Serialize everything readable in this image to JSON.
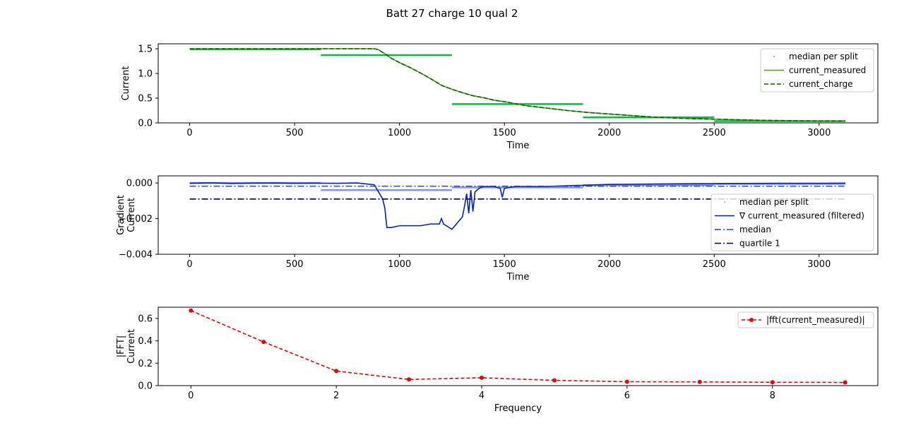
{
  "figure": {
    "title": "Batt 27 charge 10 qual 2"
  },
  "chart_data": [
    {
      "type": "line",
      "xlabel": "Time",
      "ylabel": "Current",
      "xlim": [
        -150,
        3280
      ],
      "ylim": [
        0,
        1.6
      ],
      "xticks": [
        0,
        500,
        1000,
        1500,
        2000,
        2500,
        3000
      ],
      "xtick_labels": [
        "0",
        "500",
        "1000",
        "1500",
        "2000",
        "2500",
        "3000"
      ],
      "yticks": [
        0,
        0.5,
        1.0,
        1.5
      ],
      "ytick_labels": [
        "0.0",
        "0.5",
        "1.0",
        "1.5"
      ],
      "legend_position": "top-right",
      "series": [
        {
          "name": "median per split",
          "style": "split-steps",
          "color": "#00c040",
          "segments": [
            {
              "x": [
                0,
                625
              ],
              "y": 1.49
            },
            {
              "x": [
                625,
                1250
              ],
              "y": 1.37
            },
            {
              "x": [
                1250,
                1875
              ],
              "y": 0.38
            },
            {
              "x": [
                1875,
                2500
              ],
              "y": 0.11
            },
            {
              "x": [
                2500,
                3125
              ],
              "y": 0.035
            }
          ]
        },
        {
          "name": "current_measured",
          "style": "solid",
          "color": "#44aa00",
          "x": [
            0,
            880,
            900,
            930,
            960,
            1000,
            1050,
            1100,
            1150,
            1200,
            1250,
            1300,
            1350,
            1400,
            1450,
            1500,
            1550,
            1600,
            1700,
            1800,
            1900,
            2000,
            2100,
            2200,
            2300,
            2400,
            2500,
            2600,
            2700,
            2800,
            2900,
            3000,
            3125
          ],
          "y": [
            1.5,
            1.5,
            1.48,
            1.4,
            1.31,
            1.22,
            1.12,
            1.01,
            0.89,
            0.76,
            0.68,
            0.61,
            0.55,
            0.51,
            0.46,
            0.43,
            0.39,
            0.35,
            0.3,
            0.25,
            0.21,
            0.18,
            0.15,
            0.12,
            0.1,
            0.085,
            0.075,
            0.065,
            0.055,
            0.048,
            0.042,
            0.038,
            0.035
          ]
        },
        {
          "name": "current_charge",
          "style": "dashed",
          "color": "#006400",
          "x": [
            0,
            880,
            900,
            930,
            960,
            1000,
            1050,
            1100,
            1150,
            1200,
            1250,
            1300,
            1350,
            1400,
            1450,
            1500,
            1550,
            1600,
            1700,
            1800,
            1900,
            2000,
            2100,
            2200,
            2300,
            2400,
            2500,
            2600,
            2700,
            2800,
            2900,
            3000,
            3125
          ],
          "y": [
            1.5,
            1.5,
            1.48,
            1.4,
            1.31,
            1.22,
            1.12,
            1.01,
            0.89,
            0.76,
            0.68,
            0.61,
            0.55,
            0.51,
            0.46,
            0.43,
            0.39,
            0.35,
            0.3,
            0.25,
            0.21,
            0.18,
            0.15,
            0.12,
            0.1,
            0.085,
            0.075,
            0.065,
            0.055,
            0.048,
            0.042,
            0.038,
            0.035
          ]
        }
      ]
    },
    {
      "type": "line",
      "xlabel": "Time",
      "ylabel": "Gradient\nCurrent",
      "xlim": [
        -150,
        3280
      ],
      "ylim": [
        -0.004,
        0.0004
      ],
      "xticks": [
        0,
        500,
        1000,
        1500,
        2000,
        2500,
        3000
      ],
      "xtick_labels": [
        "0",
        "500",
        "1000",
        "1500",
        "2000",
        "2500",
        "3000"
      ],
      "yticks": [
        -0.004,
        -0.002,
        0.0
      ],
      "ytick_labels": [
        "−0.004",
        "−0.002",
        "0.000"
      ],
      "legend_position": "right",
      "series": [
        {
          "name": "median per split",
          "style": "split-steps",
          "color": "#8090f0",
          "segments": [
            {
              "x": [
                0,
                625
              ],
              "y": 0.0
            },
            {
              "x": [
                625,
                1250
              ],
              "y": -0.0004
            },
            {
              "x": [
                1250,
                1875
              ],
              "y": -0.00025
            },
            {
              "x": [
                1875,
                2500
              ],
              "y": -0.00012
            },
            {
              "x": [
                2500,
                3125
              ],
              "y": -5e-05
            }
          ]
        },
        {
          "name": "∇ current_measured (filtered)",
          "style": "solid",
          "color": "#0022cc",
          "x": [
            0,
            100,
            200,
            300,
            400,
            500,
            600,
            700,
            800,
            880,
            900,
            920,
            930,
            940,
            960,
            1000,
            1050,
            1100,
            1150,
            1190,
            1200,
            1210,
            1250,
            1300,
            1310,
            1320,
            1330,
            1340,
            1350,
            1360,
            1380,
            1400,
            1450,
            1480,
            1490,
            1500,
            1550,
            1600,
            1700,
            1800,
            1900,
            2000,
            2200,
            2400,
            2600,
            2800,
            3000,
            3125
          ],
          "y": [
            -2e-05,
            1e-05,
            -3e-05,
            -1e-05,
            0.0,
            -2e-05,
            -1e-05,
            -2e-05,
            0.0,
            -0.0001,
            -0.0005,
            -0.0009,
            -0.0014,
            -0.0025,
            -0.0025,
            -0.0024,
            -0.0024,
            -0.0024,
            -0.0023,
            -0.0023,
            -0.002,
            -0.0023,
            -0.0026,
            -0.0019,
            -0.0013,
            -0.0006,
            -0.0017,
            -0.0004,
            -0.0016,
            -0.0005,
            -0.0003,
            -0.0002,
            -0.0002,
            -0.0003,
            -0.0008,
            -0.0003,
            -0.0002,
            -0.0002,
            -0.0002,
            -0.00015,
            -0.00012,
            -8e-05,
            -6e-05,
            -4e-05,
            -3e-05,
            -2e-05,
            -2e-05,
            -1e-05
          ]
        },
        {
          "name": "median",
          "style": "dashdot",
          "color": "#2244dd",
          "x": [
            0,
            3125
          ],
          "y": [
            -0.00018,
            -0.00018
          ]
        },
        {
          "name": "quartile 1",
          "style": "dashdot",
          "color": "#000066",
          "x": [
            0,
            3125
          ],
          "y": [
            -0.0009,
            -0.0009
          ]
        }
      ]
    },
    {
      "type": "line",
      "xlabel": "Frequency",
      "ylabel": "|FFT|\nCurrent",
      "xlim": [
        -0.45,
        9.45
      ],
      "ylim": [
        0,
        0.7
      ],
      "xticks": [
        0,
        2,
        4,
        6,
        8
      ],
      "xtick_labels": [
        "0",
        "2",
        "4",
        "6",
        "8"
      ],
      "yticks": [
        0.0,
        0.2,
        0.4,
        0.6
      ],
      "ytick_labels": [
        "0.0",
        "0.2",
        "0.4",
        "0.6"
      ],
      "legend_position": "top-right",
      "series": [
        {
          "name": "|fft(current_measured)|",
          "style": "dashed-markers",
          "color": "#ee0000",
          "x": [
            0,
            1,
            2,
            3,
            4,
            5,
            6,
            7,
            8,
            9
          ],
          "y": [
            0.67,
            0.39,
            0.13,
            0.055,
            0.07,
            0.047,
            0.035,
            0.033,
            0.03,
            0.028
          ]
        }
      ]
    }
  ]
}
